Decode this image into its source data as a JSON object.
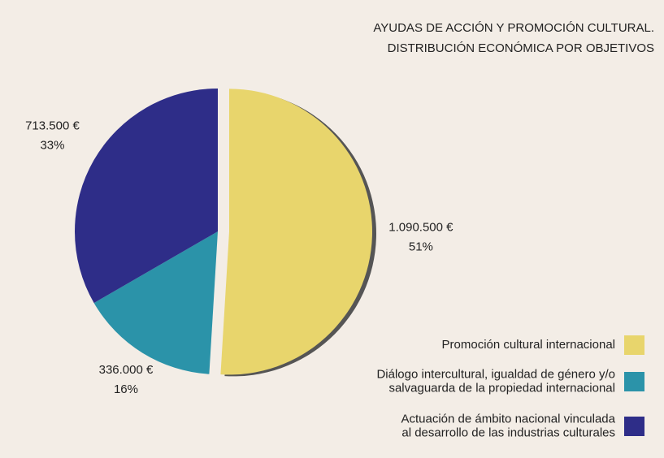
{
  "chart_data": {
    "type": "pie",
    "title": [
      "AYUDAS DE ACCIÓN Y PROMOCIÓN CULTURAL.",
      "DISTRIBUCIÓN ECONÓMICA POR OBJETIVOS"
    ],
    "categories": [
      [
        "Promoción cultural internacional"
      ],
      [
        "Diálogo intercultural, igualdad de género y/o",
        "salvaguarda de la propiedad internacional"
      ],
      [
        "Actuación de ámbito nacional vinculada",
        "al desarrollo de las industrias culturales"
      ]
    ],
    "values": [
      1090500,
      336000,
      713500
    ],
    "value_labels": [
      "1.090.500 €",
      "336.000 €",
      "713.500 €"
    ],
    "percentages": [
      51,
      16,
      33
    ],
    "percentage_labels": [
      "51%",
      "16%",
      "33%"
    ],
    "colors": [
      "#e8d56c",
      "#2b93a9",
      "#2e2d88"
    ],
    "legend": "bottom-right"
  }
}
